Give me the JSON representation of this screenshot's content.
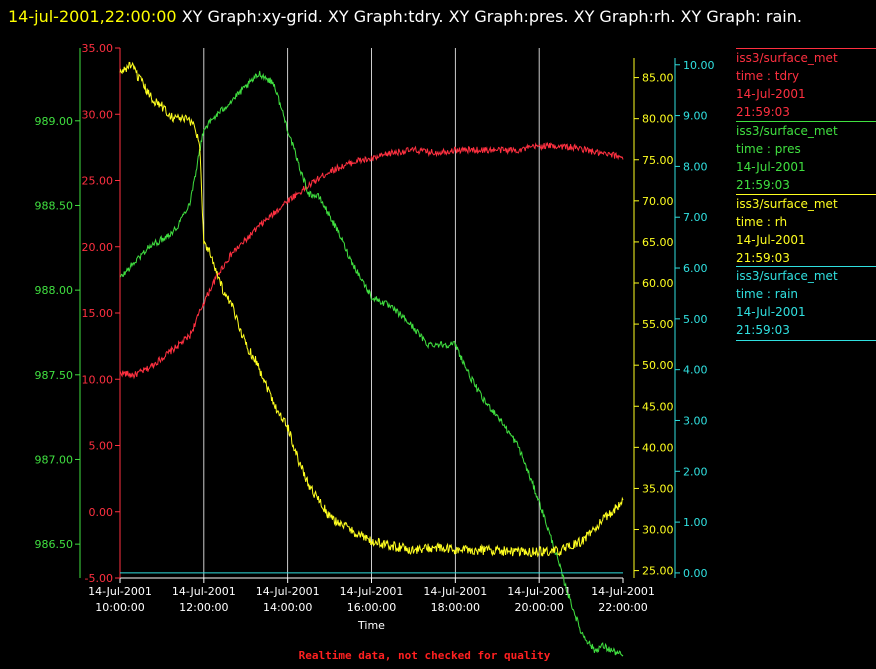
{
  "title": {
    "timestamp": "14-jul-2001,22:00:00",
    "rest": "  XY Graph:xy-grid.  XY Graph:tdry.  XY Graph:pres.  XY Graph:rh.  XY Graph: rain."
  },
  "colors": {
    "tdry": "#ff3040",
    "pres": "#40e040",
    "rh": "#ffff20",
    "rain": "#30e0e0",
    "grid": "#ffffff"
  },
  "legend": [
    {
      "key": "tdry",
      "source": "iss3/surface_met",
      "label": "time : tdry",
      "date": "14-Jul-2001",
      "time": "21:59:03"
    },
    {
      "key": "pres",
      "source": "iss3/surface_met",
      "label": "time : pres",
      "date": "14-Jul-2001",
      "time": "21:59:03"
    },
    {
      "key": "rh",
      "source": "iss3/surface_met",
      "label": "time : rh",
      "date": "14-Jul-2001",
      "time": "21:59:03"
    },
    {
      "key": "rain",
      "source": "iss3/surface_met",
      "label": "time : rain",
      "date": "14-Jul-2001",
      "time": "21:59:03"
    }
  ],
  "footer": "Realtime data, not checked for quality",
  "chart_data": {
    "type": "line",
    "xlabel": "Time",
    "x_range": [
      "2001-07-14T10:00:00",
      "2001-07-14T22:00:00"
    ],
    "x_ticks": [
      {
        "date": "14-Jul-2001",
        "time": "10:00:00"
      },
      {
        "date": "14-Jul-2001",
        "time": "12:00:00"
      },
      {
        "date": "14-Jul-2001",
        "time": "14:00:00"
      },
      {
        "date": "14-Jul-2001",
        "time": "16:00:00"
      },
      {
        "date": "14-Jul-2001",
        "time": "18:00:00"
      },
      {
        "date": "14-Jul-2001",
        "time": "20:00:00"
      },
      {
        "date": "14-Jul-2001",
        "time": "22:00:00"
      }
    ],
    "grid": "vertical lines at x ticks",
    "axes": {
      "tdry": {
        "ylim": [
          -5,
          35
        ],
        "ticks": [
          "-5.00",
          "0.00",
          "5.00",
          "10.00",
          "15.00",
          "20.00",
          "25.00",
          "30.00",
          "35.00"
        ]
      },
      "pres": {
        "ylim": [
          986.3,
          989.43
        ],
        "ticks": [
          "986.50",
          "987.00",
          "987.50",
          "988.00",
          "988.50",
          "989.00"
        ]
      },
      "rh": {
        "ylim": [
          24.1,
          88.6
        ],
        "ticks": [
          "25.00",
          "30.00",
          "35.00",
          "40.00",
          "45.00",
          "50.00",
          "55.00",
          "60.00",
          "65.00",
          "70.00",
          "75.00",
          "80.00",
          "85.00"
        ]
      },
      "rain": {
        "ylim": [
          -0.1,
          10.33
        ],
        "ticks": [
          "0.00",
          "1.00",
          "2.00",
          "3.00",
          "4.00",
          "5.00",
          "6.00",
          "7.00",
          "8.00",
          "9.00",
          "10.00"
        ]
      }
    },
    "series": [
      {
        "key": "tdry",
        "hours": [
          10.0,
          10.33,
          10.67,
          11.0,
          11.33,
          11.67,
          12.0,
          12.33,
          12.67,
          13.0,
          13.33,
          13.67,
          14.0,
          14.33,
          14.67,
          15.0,
          15.33,
          15.67,
          16.0,
          16.5,
          17.0,
          17.5,
          18.0,
          18.5,
          19.0,
          19.5,
          20.0,
          20.5,
          21.0,
          21.5,
          22.0
        ],
        "values": [
          10.5,
          10.3,
          10.8,
          11.6,
          12.4,
          13.3,
          15.8,
          17.9,
          19.5,
          20.5,
          21.6,
          22.5,
          23.5,
          24.2,
          25.0,
          25.7,
          26.1,
          26.5,
          26.6,
          27.1,
          27.3,
          27.1,
          27.3,
          27.3,
          27.3,
          27.3,
          27.6,
          27.6,
          27.4,
          27.0,
          26.8
        ]
      },
      {
        "key": "pres",
        "hours": [
          10.0,
          10.33,
          10.67,
          11.0,
          11.33,
          11.67,
          12.0,
          12.25,
          12.5,
          13.0,
          13.33,
          13.67,
          14.0,
          14.25,
          14.5,
          14.75,
          15.0,
          15.25,
          15.5,
          16.0,
          16.33,
          16.67,
          17.0,
          17.33,
          17.67,
          18.0,
          18.33,
          18.67,
          19.0,
          19.5,
          20.0,
          20.33,
          20.67,
          21.0,
          21.33,
          21.5,
          22.0
        ],
        "values": [
          988.07,
          988.16,
          988.25,
          988.3,
          988.36,
          988.52,
          988.95,
          989.02,
          989.08,
          989.2,
          989.28,
          989.22,
          988.95,
          988.75,
          988.57,
          988.55,
          988.44,
          988.32,
          988.18,
          987.96,
          987.92,
          987.86,
          987.78,
          987.68,
          987.68,
          987.68,
          987.5,
          987.35,
          987.26,
          987.08,
          986.75,
          986.5,
          986.22,
          985.98,
          985.87,
          985.9,
          985.84
        ]
      },
      {
        "key": "rh",
        "hours": [
          10.0,
          10.25,
          10.5,
          10.75,
          11.0,
          11.25,
          11.5,
          11.75,
          11.9,
          12.0,
          12.17,
          12.33,
          12.5,
          12.67,
          12.83,
          13.0,
          13.25,
          13.5,
          13.75,
          14.0,
          14.25,
          14.5,
          14.75,
          15.0,
          15.5,
          16.0,
          16.5,
          17.0,
          17.5,
          18.0,
          18.5,
          19.0,
          19.5,
          20.0,
          20.5,
          21.0,
          21.5,
          22.0
        ],
        "values": [
          85.5,
          86.6,
          84.5,
          82.5,
          81.5,
          80.2,
          80.0,
          79.5,
          77.0,
          65.0,
          63.5,
          61.0,
          58.5,
          57.2,
          55.0,
          52.5,
          50.5,
          47.5,
          44.5,
          42.5,
          38.5,
          35.5,
          33.5,
          31.5,
          30.0,
          28.5,
          28.0,
          27.5,
          27.8,
          27.5,
          27.5,
          27.5,
          27.2,
          27.3,
          27.4,
          28.5,
          31.0,
          33.5
        ]
      },
      {
        "key": "rain",
        "hours": [
          10.0,
          22.0
        ],
        "values": [
          0.0,
          0.0
        ]
      }
    ]
  }
}
